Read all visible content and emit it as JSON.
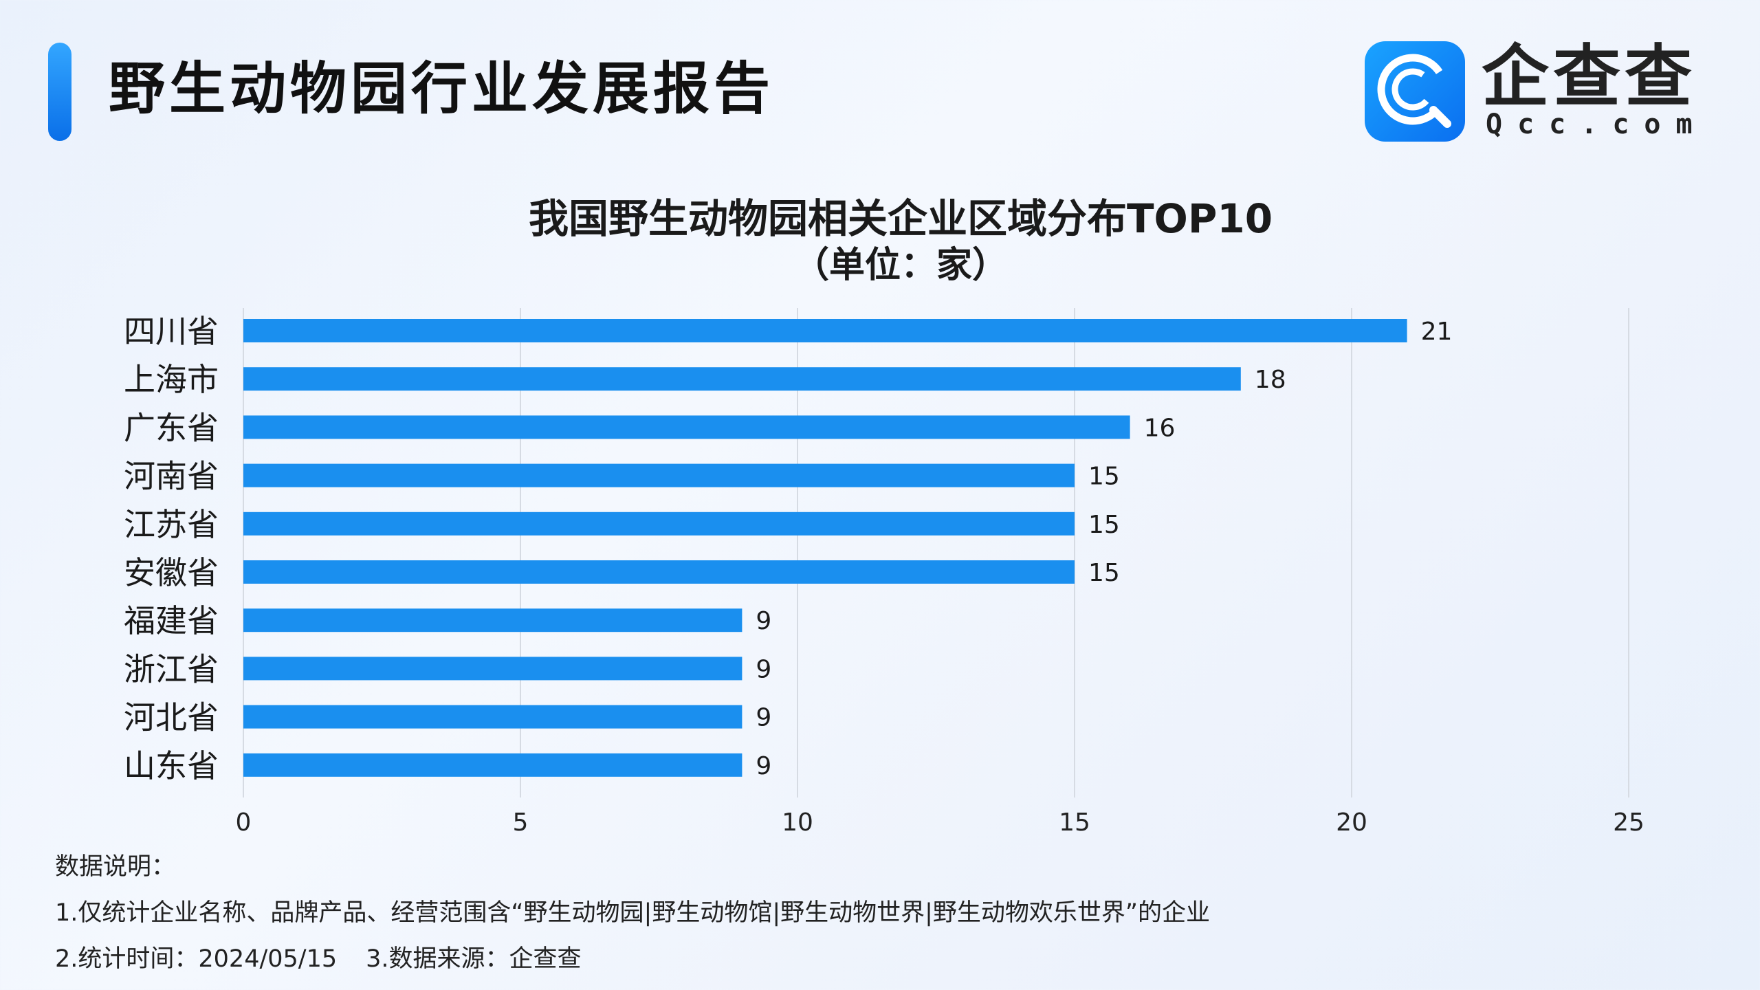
{
  "header": {
    "title": "野生动物园行业发展报告",
    "logo_cn": "企查查",
    "logo_en": "Qcc.com"
  },
  "colors": {
    "accent": "#1a8fef",
    "bar": "#1a8fef",
    "grid": "#d6dbe3"
  },
  "chart_data": {
    "type": "bar",
    "orientation": "horizontal",
    "title": "我国野生动物园相关企业区域分布TOP10",
    "subtitle": "（单位：家）",
    "categories": [
      "四川省",
      "上海市",
      "广东省",
      "河南省",
      "江苏省",
      "安徽省",
      "福建省",
      "浙江省",
      "河北省",
      "山东省"
    ],
    "values": [
      21,
      18,
      16,
      15,
      15,
      15,
      9,
      9,
      9,
      9
    ],
    "xlim": [
      0,
      25
    ],
    "xticks": [
      0,
      5,
      10,
      15,
      20,
      25
    ],
    "grid": true,
    "data_labels": true
  },
  "notes": {
    "heading": "数据说明：",
    "line1": "1.仅统计企业名称、品牌产品、经营范围含“野生动物园|野生动物馆|野生动物世界|野生动物欢乐世界”的企业",
    "line2a": "2.统计时间：2024/05/15",
    "line2b": "3.数据来源：企查查"
  }
}
